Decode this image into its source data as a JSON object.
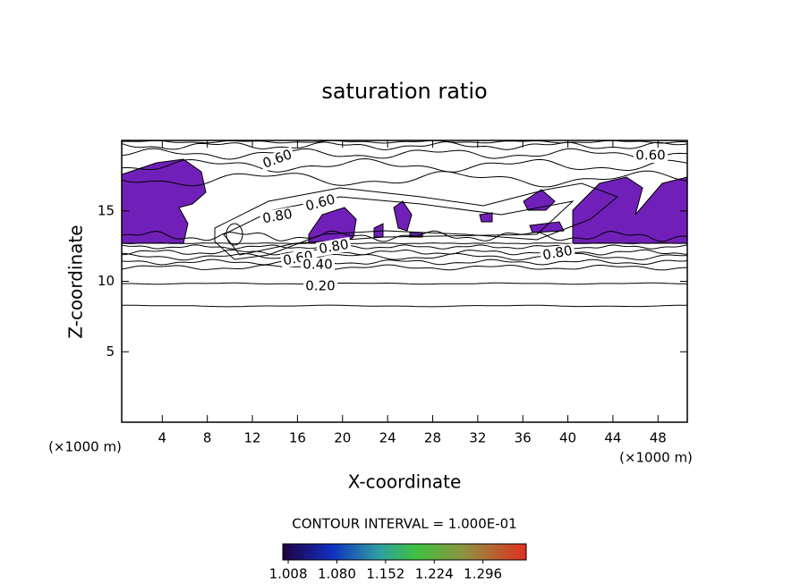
{
  "chart_data": {
    "type": "contour",
    "title": "saturation ratio",
    "x_label": "X-coordinate",
    "y_label": "Z-coordinate",
    "x_unit": "(×1000 m)",
    "y_unit": "(×1000 m)",
    "xlim": [
      0.4,
      50.6
    ],
    "xticks": [
      4,
      8,
      12,
      16,
      20,
      24,
      28,
      32,
      36,
      40,
      44,
      48
    ],
    "ylim": [
      0,
      20
    ],
    "yticks": [
      5,
      10,
      15
    ],
    "fill_color": "#7020b8",
    "contour_labels": [
      {
        "value": 0.6,
        "label": "0.60"
      },
      {
        "value": 0.6,
        "label": "0.60"
      },
      {
        "value": 0.8,
        "label": "0.80"
      },
      {
        "value": 0.6,
        "label": "0.60"
      },
      {
        "value": 0.8,
        "label": "0.80"
      },
      {
        "value": 0.6,
        "label": "0.60"
      },
      {
        "value": 0.4,
        "label": "0.40"
      },
      {
        "value": 0.2,
        "label": "0.20"
      },
      {
        "value": 0.8,
        "label": "0.80"
      }
    ],
    "contour_interval_label": "CONTOUR INTERVAL = 1.000E-01",
    "colorbar": {
      "lim": [
        1.0,
        1.36
      ],
      "ticks": [
        {
          "value": 1.008,
          "label": "1.008"
        },
        {
          "value": 1.08,
          "label": "1.080"
        },
        {
          "value": 1.152,
          "label": "1.152"
        },
        {
          "value": 1.224,
          "label": "1.224"
        },
        {
          "value": 1.296,
          "label": "1.296"
        }
      ]
    }
  }
}
